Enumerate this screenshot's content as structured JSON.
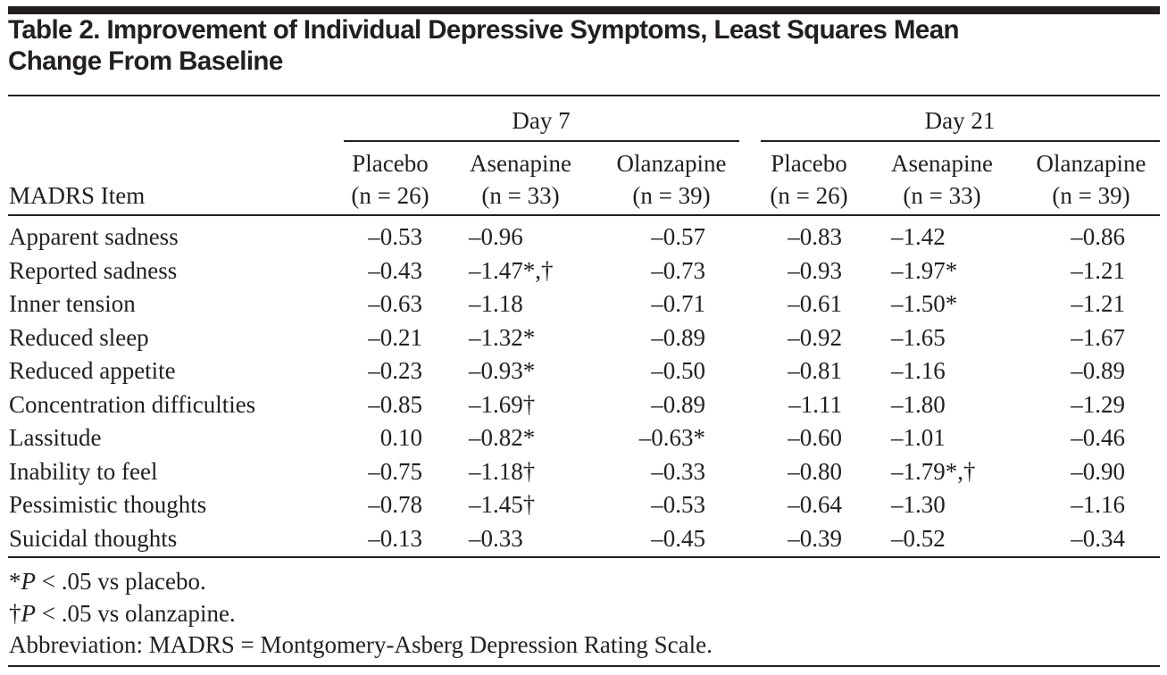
{
  "title": {
    "line1": "Table 2. Improvement of Individual Depressive Symptoms, Least Squares Mean",
    "line2": "Change From Baseline"
  },
  "groups": [
    "Day 7",
    "Day 21"
  ],
  "row_header": "MADRS Item",
  "columns": [
    {
      "name": "Placebo",
      "n": "(n = 26)"
    },
    {
      "name": "Asenapine",
      "n": "(n = 33)"
    },
    {
      "name": "Olanzapine",
      "n": "(n = 39)"
    },
    {
      "name": "Placebo",
      "n": "(n = 26)"
    },
    {
      "name": "Asenapine",
      "n": "(n = 33)"
    },
    {
      "name": "Olanzapine",
      "n": "(n = 39)"
    }
  ],
  "rows": [
    {
      "item": "Apparent sadness",
      "v": [
        "–0.53",
        "–0.96",
        "–0.57",
        "–0.83",
        "–1.42",
        "–0.86"
      ]
    },
    {
      "item": "Reported sadness",
      "v": [
        "–0.43",
        "–1.47*,†",
        "–0.73",
        "–0.93",
        "–1.97*",
        "–1.21"
      ]
    },
    {
      "item": "Inner tension",
      "v": [
        "–0.63",
        "–1.18",
        "–0.71",
        "–0.61",
        "–1.50*",
        "–1.21"
      ]
    },
    {
      "item": "Reduced sleep",
      "v": [
        "–0.21",
        "–1.32*",
        "–0.89",
        "–0.92",
        "–1.65",
        "–1.67"
      ]
    },
    {
      "item": "Reduced appetite",
      "v": [
        "–0.23",
        "–0.93*",
        "–0.50",
        "–0.81",
        "–1.16",
        "–0.89"
      ]
    },
    {
      "item": "Concentration difficulties",
      "v": [
        "–0.85",
        "–1.69†",
        "–0.89",
        "–1.11",
        "–1.80",
        "–1.29"
      ]
    },
    {
      "item": "Lassitude",
      "v": [
        "0.10",
        "–0.82*",
        "–0.63*",
        "–0.60",
        "–1.01",
        "–0.46"
      ]
    },
    {
      "item": "Inability to feel",
      "v": [
        "–0.75",
        "–1.18†",
        "–0.33",
        "–0.80",
        "–1.79*,†",
        "–0.90"
      ]
    },
    {
      "item": "Pessimistic thoughts",
      "v": [
        "–0.78",
        "–1.45†",
        "–0.53",
        "–0.64",
        "–1.30",
        "–1.16"
      ]
    },
    {
      "item": "Suicidal thoughts",
      "v": [
        "–0.13",
        "–0.33",
        "–0.45",
        "–0.39",
        "–0.52",
        "–0.34"
      ]
    }
  ],
  "footnotes": [
    {
      "mark": "*",
      "italic": "P",
      "text": " < .05 vs placebo."
    },
    {
      "mark": "†",
      "italic": "P",
      "text": " < .05 vs olanzapine."
    },
    {
      "mark": "",
      "italic": "",
      "text": "Abbreviation: MADRS = Montgomery-Asberg Depression Rating Scale."
    }
  ]
}
